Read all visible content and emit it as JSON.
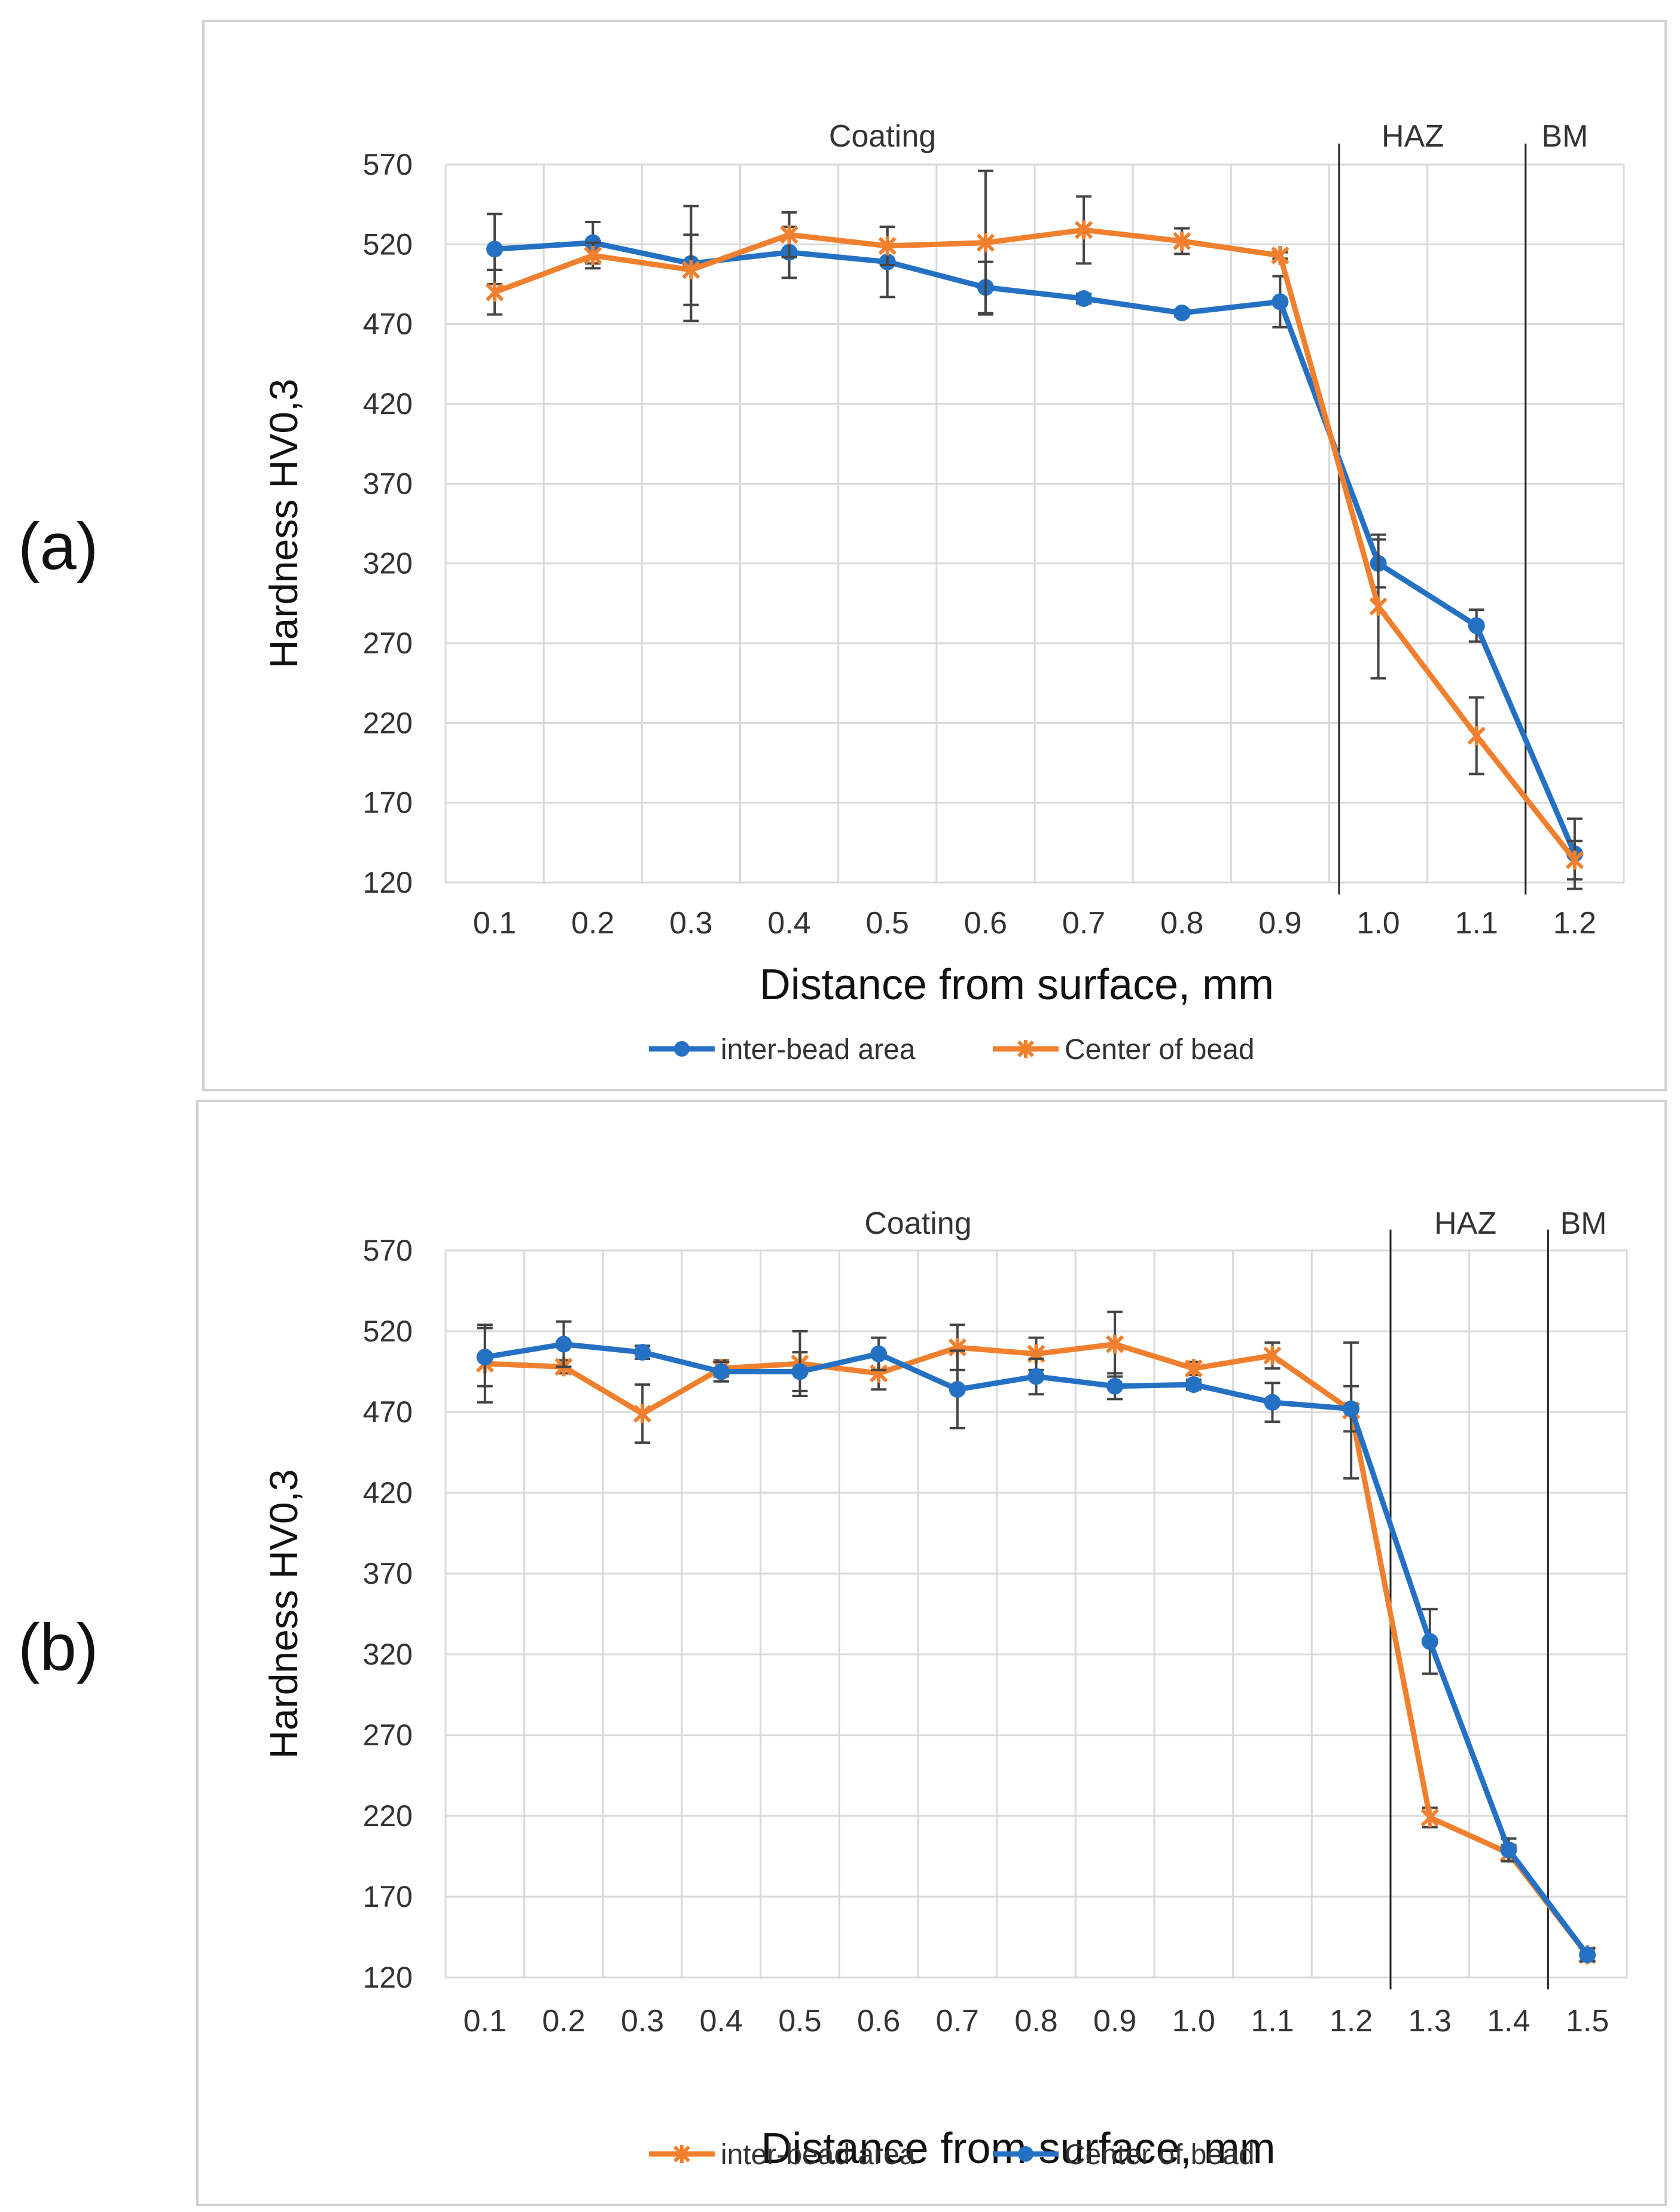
{
  "panels": [
    {
      "label": "(a)",
      "chart_data": {
        "type": "line",
        "title": "",
        "xlabel": "Distance from surface, mm",
        "ylabel": "Hardness HV0,3",
        "ylim": [
          120,
          570
        ],
        "yticks": [
          120,
          170,
          220,
          270,
          320,
          370,
          420,
          470,
          520,
          570
        ],
        "categories": [
          "0.1",
          "0.2",
          "0.3",
          "0.4",
          "0.5",
          "0.6",
          "0.7",
          "0.8",
          "0.9",
          "1.0",
          "1.1",
          "1.2"
        ],
        "grid": true,
        "legend": "bottom",
        "zones": [
          {
            "label": "Coating",
            "from_category": 0.5,
            "to_category": 9.4
          },
          {
            "label": "HAZ",
            "from_category": 9.4,
            "to_category": 11.3
          },
          {
            "label": "BM",
            "from_category": 11.3,
            "to_category": 12.5
          }
        ],
        "boundaries": [
          0.96,
          1.15
        ],
        "series": [
          {
            "name": "inter-bead area",
            "color": "#2471c4",
            "marker": "circle",
            "values": [
              517,
              521,
              508,
              515,
              509,
              493,
              486,
              477,
              484,
              320,
              281,
              138
            ],
            "errors": [
              22,
              13,
              36,
              16,
              22,
              16,
              3,
              2,
              16,
              15,
              10,
              22
            ]
          },
          {
            "name": "Center of bead",
            "color": "#f0802e",
            "marker": "x",
            "values": [
              490,
              513,
              504,
              526,
              519,
              521,
              529,
              522,
              513,
              293,
              212,
              134
            ],
            "errors": [
              14,
              8,
              22,
              14,
              12,
              45,
              21,
              8,
              2,
              45,
              24,
              12
            ]
          }
        ]
      }
    },
    {
      "label": "(b)",
      "chart_data": {
        "type": "line",
        "title": "",
        "xlabel": "Distance from surface, mm",
        "ylabel": "Hardness HV0,3",
        "ylim": [
          120,
          570
        ],
        "yticks": [
          120,
          170,
          220,
          270,
          320,
          370,
          420,
          470,
          520,
          570
        ],
        "categories": [
          "0.1",
          "0.2",
          "0.3",
          "0.4",
          "0.5",
          "0.6",
          "0.7",
          "0.8",
          "0.9",
          "1.0",
          "1.1",
          "1.2",
          "1.3",
          "1.4",
          "1.5"
        ],
        "grid": true,
        "legend": "bottom",
        "zones": [
          {
            "label": "Coating",
            "from_category": 0.5,
            "to_category": 12.5
          },
          {
            "label": "HAZ",
            "from_category": 12.5,
            "to_category": 14.4
          },
          {
            "label": "BM",
            "from_category": 14.4,
            "to_category": 15.5
          }
        ],
        "boundaries": [
          1.25,
          1.45
        ],
        "series": [
          {
            "name": "inter-bead area",
            "color": "#f0802e",
            "marker": "x",
            "values": [
              500,
              498,
              469,
              497,
              500,
              494,
              510,
              506,
              512,
              497,
              505,
              471,
              219,
              197,
              134
            ],
            "errors": [
              24,
              4,
              18,
              5,
              20,
              10,
              14,
              10,
              20,
              4,
              8,
              42,
              6,
              5,
              4
            ]
          },
          {
            "name": "Center of bead",
            "color": "#2471c4",
            "marker": "circle",
            "values": [
              504,
              512,
              507,
              495,
              495,
              506,
              484,
              492,
              486,
              487,
              476,
              472,
              328,
              199,
              134
            ],
            "errors": [
              18,
              14,
              4,
              6,
              12,
              10,
              24,
              11,
              8,
              3,
              12,
              14,
              20,
              7,
              4
            ]
          }
        ]
      }
    }
  ]
}
